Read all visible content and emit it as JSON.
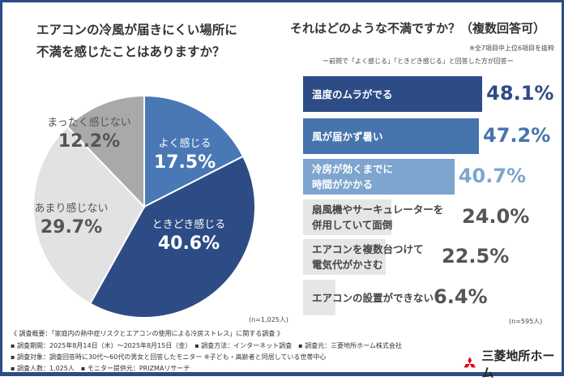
{
  "left_question": [
    "エアコンの冷風が届きにくい場所に",
    "不満を感じたことはありますか？"
  ],
  "right_question": "それはどのような不満ですか？（複数回答可）",
  "right_note1": "※全7項目中上位6項目を抜粋",
  "right_note2": "ー前問で「よく感じる」「ときどき感じる」と回答した方が回答ー",
  "chart_data": [
    {
      "type": "pie",
      "n_label": "(n=1,025人)",
      "slices": [
        {
          "label": "よく感じる",
          "value": 17.5,
          "value_label": "17.5%",
          "color": "#4a78b5",
          "text_color": "#ffffff"
        },
        {
          "label": "ときどき感じる",
          "value": 40.6,
          "value_label": "40.6%",
          "color": "#2d4c85",
          "text_color": "#ffffff"
        },
        {
          "label": "あまり感じない",
          "value": 29.7,
          "value_label": "29.7%",
          "color": "#e2e2e2",
          "text_color": "#555555"
        },
        {
          "label": "まったく感じない",
          "value": 12.2,
          "value_label": "12.2%",
          "color": "#a9a9a9",
          "text_color": "#555555"
        }
      ]
    },
    {
      "type": "bar",
      "orientation": "horizontal",
      "n_label": "(n=595人)",
      "bars": [
        {
          "label": [
            "温度のムラがでる"
          ],
          "value": 48.1,
          "value_label": "48.1%",
          "color": "#2d4c85",
          "label_color": "#ffffff",
          "value_color": "#2d4c85"
        },
        {
          "label": [
            "風が届かず暑い"
          ],
          "value": 47.2,
          "value_label": "47.2%",
          "color": "#4674ad",
          "label_color": "#ffffff",
          "value_color": "#4674ad"
        },
        {
          "label": [
            "冷房が効くまでに",
            "時間がかかる"
          ],
          "value": 40.7,
          "value_label": "40.7%",
          "color": "#7ea5cf",
          "label_color": "#ffffff",
          "value_color": "#7ea5cf"
        },
        {
          "label": [
            "扇風機やサーキュレーターを",
            "併用していて面倒"
          ],
          "value": 24.0,
          "value_label": "24.0%",
          "color": "#e6e6e6",
          "label_color": "#444444",
          "value_color": "#555555"
        },
        {
          "label": [
            "エアコンを複数台つけて",
            "電気代がかさむ"
          ],
          "value": 22.5,
          "value_label": "22.5%",
          "color": "#e6e6e6",
          "label_color": "#444444",
          "value_color": "#555555"
        },
        {
          "label": [
            "エアコンの設置ができない"
          ],
          "value": 6.4,
          "value_label": "6.4%",
          "color": "#e6e6e6",
          "label_color": "#444444",
          "value_color": "#555555"
        }
      ]
    }
  ],
  "footer": [
    "《 調査概要：「家庭内の熱中症リスクとエアコンの使用による冷房ストレス」に関する調査 》",
    "▪ 調査期間：2025年8月14日（木）～2025年8月15日（金）　▪ 調査方法：インターネット調査　▪ 調査元：三菱地所ホーム株式会社",
    "▪ 調査対象：調査回答時に30代～60代の男女と回答したモニター ※子ども・高齢者と同居している世帯中心",
    "▪ 調査人数：1,025人　▪ モニター提供元：PRIZMAリサーチ"
  ],
  "logo": {
    "text": "三菱地所ホーム",
    "color": "#e60012"
  }
}
